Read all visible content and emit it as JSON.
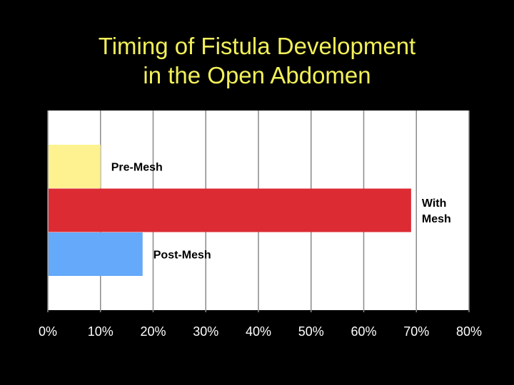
{
  "slide": {
    "title_line1": "Timing of Fistula Development",
    "title_line2": "in the Open Abdomen"
  },
  "chart_data": {
    "type": "bar",
    "orientation": "horizontal",
    "title": "Timing of Fistula Development in the Open Abdomen",
    "categories": [
      "Pre-Mesh",
      "With Mesh",
      "Post-Mesh"
    ],
    "label_lines": [
      [
        "Pre-Mesh"
      ],
      [
        "With",
        "Mesh"
      ],
      [
        "Post-Mesh"
      ]
    ],
    "values": [
      10,
      69,
      18
    ],
    "colors": [
      "#fdf28f",
      "#dc2b33",
      "#64a9fa"
    ],
    "xlim": [
      0,
      80
    ],
    "xticks": [
      "0%",
      "10%",
      "20%",
      "30%",
      "40%",
      "50%",
      "60%",
      "70%",
      "80%"
    ],
    "grid": true,
    "legend": "none",
    "background": "#000000",
    "title_color": "#f2f05a",
    "gridline_color": "#8a8a8a"
  }
}
